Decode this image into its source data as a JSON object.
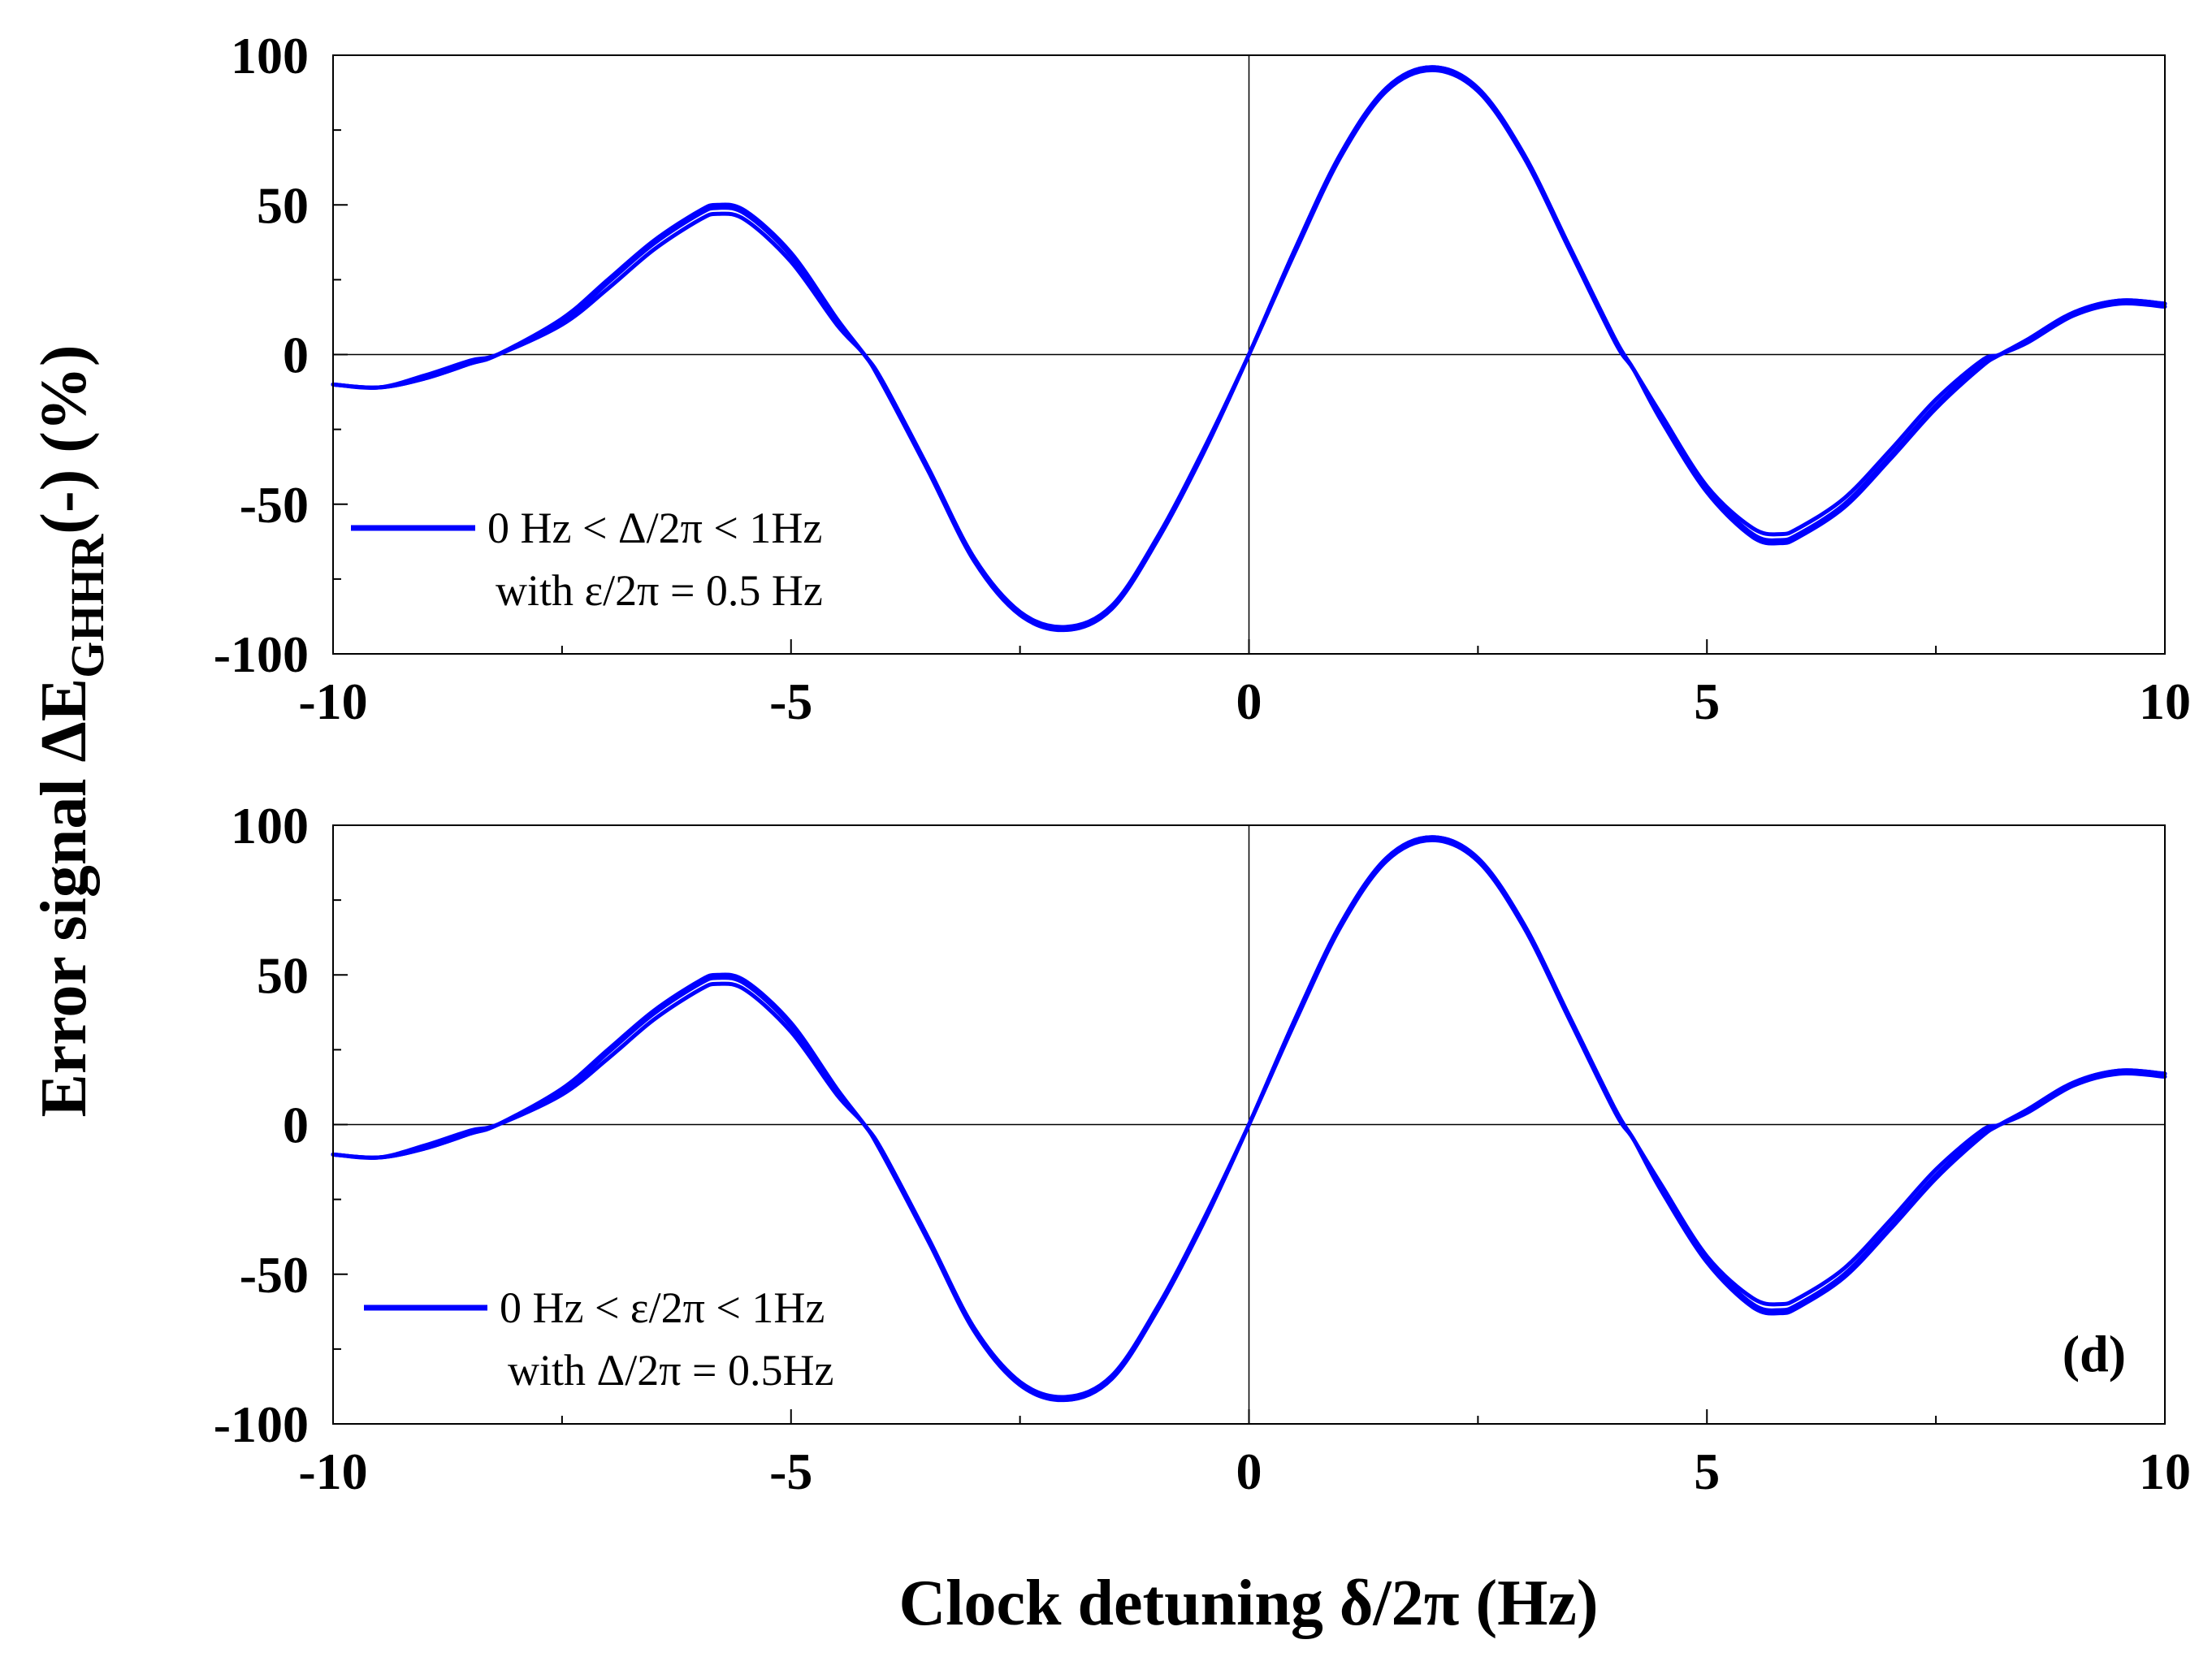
{
  "figure": {
    "ylabel_main": "Error signal ΔE",
    "ylabel_sub": "GHHR",
    "ylabel_tail": "(-) (%)",
    "xlabel": "Clock detuning δ/2π (Hz)",
    "series_color": "#0000ff"
  },
  "chart_data": [
    {
      "type": "line",
      "panel_label": "",
      "xlim": [
        -10,
        10
      ],
      "ylim": [
        -100,
        100
      ],
      "x_ticks": [
        -10,
        -5,
        0,
        5,
        10
      ],
      "y_ticks": [
        -100,
        -50,
        0,
        50,
        100
      ],
      "x_tick_labels": [
        "-10",
        "-5",
        "0",
        "5",
        "10"
      ],
      "y_tick_labels": [
        "-100",
        "-50",
        "0",
        "50",
        "100"
      ],
      "legend": {
        "line1": "0 Hz < Δ/2π < 1Hz",
        "line2": "with ε/2π = 0.5 Hz",
        "placement": "lower-left"
      },
      "x": [
        -10,
        -9.5,
        -9,
        -8.5,
        -8.2,
        -7.5,
        -7,
        -6.5,
        -6,
        -5.8,
        -5.5,
        -5,
        -4.5,
        -4.2,
        -4,
        -3.5,
        -3,
        -2.5,
        -2,
        -1.5,
        -1,
        -0.5,
        0,
        0.5,
        1,
        1.5,
        2,
        2.5,
        3,
        3.5,
        4,
        4.2,
        4.5,
        5,
        5.5,
        5.8,
        6,
        6.5,
        7,
        7.5,
        8,
        8.2,
        8.5,
        9,
        9.5,
        10
      ],
      "series": [
        {
          "values": [
            -10,
            -11,
            -8,
            -3,
            0,
            12,
            25,
            38,
            48,
            50,
            48,
            34,
            12,
            0,
            -9,
            -38,
            -68,
            -86,
            -92,
            -85,
            -62,
            -33,
            0,
            35,
            67,
            89,
            96,
            89,
            67,
            36,
            5,
            -5,
            -20,
            -44,
            -58,
            -60,
            -58,
            -48,
            -32,
            -15,
            -2,
            0,
            5,
            14,
            18,
            17
          ]
        },
        {
          "values": [
            -10,
            -11,
            -8,
            -3,
            0,
            11,
            24,
            37,
            47,
            49,
            47,
            33,
            11,
            0,
            -9,
            -38,
            -68,
            -86,
            -91,
            -84,
            -61,
            -32,
            0,
            34,
            66,
            88,
            95,
            88,
            66,
            35,
            4,
            -5,
            -21,
            -45,
            -60,
            -62,
            -60,
            -50,
            -34,
            -17,
            -3,
            0,
            4,
            13,
            17,
            16
          ]
        },
        {
          "values": [
            -10,
            -11,
            -7,
            -2,
            0,
            10,
            22,
            35,
            45,
            47,
            45,
            31,
            10,
            0,
            -10,
            -39,
            -69,
            -87,
            -92,
            -85,
            -62,
            -33,
            0,
            35,
            67,
            89,
            96,
            89,
            67,
            36,
            5,
            -5,
            -22,
            -46,
            -61,
            -63,
            -61,
            -51,
            -35,
            -18,
            -4,
            0,
            5,
            14,
            18,
            17
          ]
        }
      ]
    },
    {
      "type": "line",
      "panel_label": "(d)",
      "xlim": [
        -10,
        10
      ],
      "ylim": [
        -100,
        100
      ],
      "x_ticks": [
        -10,
        -5,
        0,
        5,
        10
      ],
      "y_ticks": [
        -100,
        -50,
        0,
        50,
        100
      ],
      "x_tick_labels": [
        "-10",
        "-5",
        "0",
        "5",
        "10"
      ],
      "y_tick_labels": [
        "-100",
        "-50",
        "0",
        "50",
        "100"
      ],
      "legend": {
        "line1": "0 Hz < ε/2π < 1Hz",
        "line2": "with Δ/2π = 0.5Hz",
        "placement": "lower-left"
      },
      "x": [
        -10,
        -9.5,
        -9,
        -8.5,
        -8.2,
        -7.5,
        -7,
        -6.5,
        -6,
        -5.8,
        -5.5,
        -5,
        -4.5,
        -4.2,
        -4,
        -3.5,
        -3,
        -2.5,
        -2,
        -1.5,
        -1,
        -0.5,
        0,
        0.5,
        1,
        1.5,
        2,
        2.5,
        3,
        3.5,
        4,
        4.2,
        4.5,
        5,
        5.5,
        5.8,
        6,
        6.5,
        7,
        7.5,
        8,
        8.2,
        8.5,
        9,
        9.5,
        10
      ],
      "series": [
        {
          "values": [
            -10,
            -11,
            -8,
            -3,
            0,
            12,
            25,
            38,
            48,
            50,
            48,
            34,
            12,
            0,
            -9,
            -38,
            -68,
            -86,
            -92,
            -85,
            -62,
            -33,
            0,
            35,
            67,
            89,
            96,
            89,
            67,
            36,
            5,
            -5,
            -20,
            -44,
            -58,
            -60,
            -58,
            -48,
            -32,
            -15,
            -2,
            0,
            5,
            14,
            18,
            17
          ]
        },
        {
          "values": [
            -10,
            -11,
            -8,
            -3,
            0,
            11,
            24,
            37,
            47,
            49,
            47,
            33,
            11,
            0,
            -9,
            -38,
            -68,
            -86,
            -91,
            -84,
            -61,
            -32,
            0,
            34,
            66,
            88,
            95,
            88,
            66,
            35,
            4,
            -5,
            -21,
            -45,
            -60,
            -62,
            -60,
            -50,
            -34,
            -17,
            -3,
            0,
            4,
            13,
            17,
            16
          ]
        },
        {
          "values": [
            -10,
            -11,
            -7,
            -2,
            0,
            10,
            22,
            35,
            45,
            47,
            45,
            31,
            10,
            0,
            -10,
            -39,
            -69,
            -87,
            -92,
            -85,
            -62,
            -33,
            0,
            35,
            67,
            89,
            96,
            89,
            67,
            36,
            5,
            -5,
            -22,
            -46,
            -61,
            -63,
            -61,
            -51,
            -35,
            -18,
            -4,
            0,
            5,
            14,
            18,
            17
          ]
        }
      ]
    }
  ]
}
